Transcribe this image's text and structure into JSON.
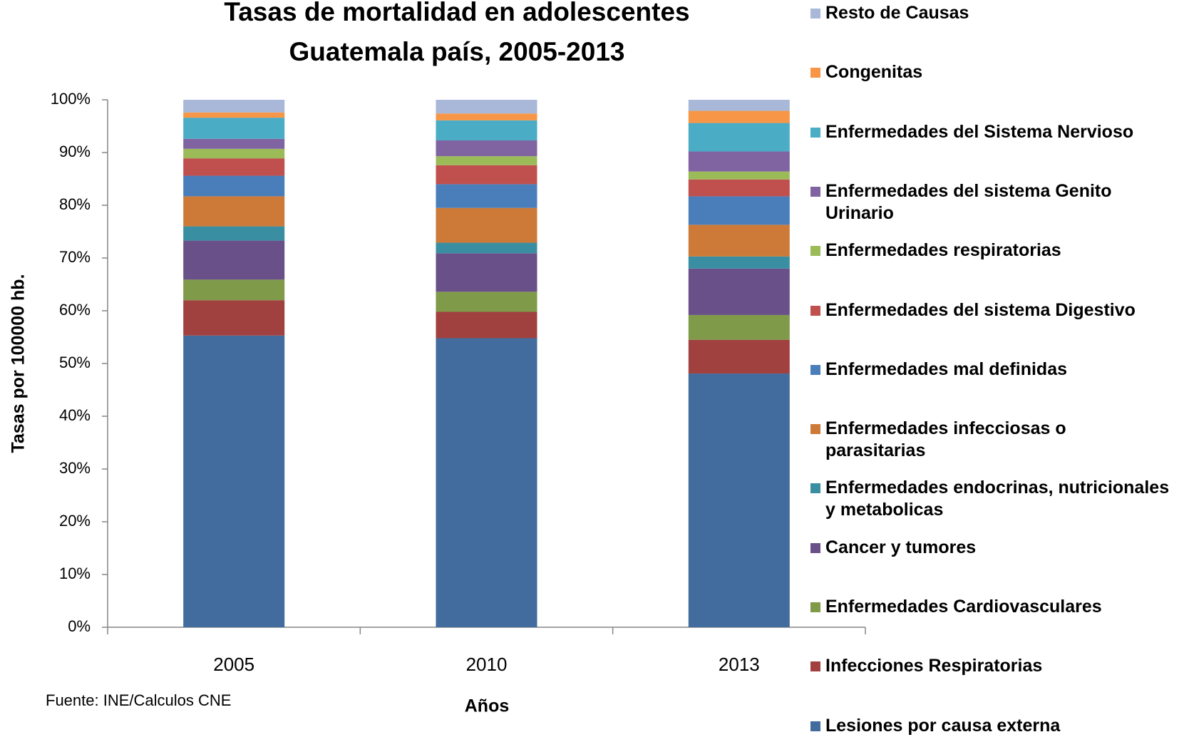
{
  "chart_data": {
    "type": "bar",
    "stacked": true,
    "title": [
      "Tasas de mortalidad en adolescentes",
      "Guatemala país,  2005-2013"
    ],
    "y_label": "Tasas por 100000 hb.",
    "x_label": "Años",
    "source": "Fuente: INE/Calculos CNE",
    "categories": [
      "2005",
      "2010",
      "2013"
    ],
    "ylim": [
      0,
      100
    ],
    "yticks": [
      {
        "value": 0,
        "label": "0%"
      },
      {
        "value": 10,
        "label": "10%"
      },
      {
        "value": 20,
        "label": "20%"
      },
      {
        "value": 30,
        "label": "30%"
      },
      {
        "value": 40,
        "label": "40%"
      },
      {
        "value": 50,
        "label": "50%"
      },
      {
        "value": 60,
        "label": "60%"
      },
      {
        "value": 70,
        "label": "70%"
      },
      {
        "value": 80,
        "label": "80%"
      },
      {
        "value": 90,
        "label": "90%"
      },
      {
        "value": 100,
        "label": "100%"
      }
    ],
    "grid": false,
    "legend": "right",
    "series": [
      {
        "name": "Lesiones por causa externa",
        "color": "#416c9d",
        "values": [
          55.3,
          54.8,
          48.1
        ]
      },
      {
        "name": "Infecciones Respiratorias",
        "color": "#a0403f",
        "values": [
          6.7,
          5.0,
          6.4
        ]
      },
      {
        "name": "Enfermedades Cardiovasculares",
        "color": "#7f9a48",
        "values": [
          3.9,
          3.8,
          4.7
        ]
      },
      {
        "name": "Cancer y tumores",
        "color": "#6a5088",
        "values": [
          7.4,
          7.3,
          8.8
        ]
      },
      {
        "name": "Enfermedades endocrinas, nutricionales y metabolicas",
        "color": "#3a8ea2",
        "values": [
          2.7,
          2.0,
          2.3
        ]
      },
      {
        "name": "Enfermedades infecciosas o parasitarias",
        "color": "#cd7a38",
        "values": [
          5.7,
          6.6,
          6.0
        ]
      },
      {
        "name": "Enfermedades mal definidas",
        "color": "#4a7ebb",
        "values": [
          3.9,
          4.5,
          5.4
        ]
      },
      {
        "name": "Enfermedades del sistema Digestivo",
        "color": "#c0504d",
        "values": [
          3.3,
          3.6,
          3.2
        ]
      },
      {
        "name": "Enfermedades respiratorias",
        "color": "#9bbb59",
        "values": [
          1.8,
          1.7,
          1.5
        ]
      },
      {
        "name": "Enfermedades del sistema Genito Urinario",
        "color": "#8064a2",
        "values": [
          1.9,
          3.0,
          3.8
        ]
      },
      {
        "name": "Enfermedades del Sistema Nervioso",
        "color": "#4bacc6",
        "values": [
          4.0,
          3.8,
          5.4
        ]
      },
      {
        "name": "Congenitas",
        "color": "#f79646",
        "values": [
          1.0,
          1.3,
          2.3
        ]
      },
      {
        "name": "Resto de Causas",
        "color": "#a9b8d8",
        "values": [
          2.4,
          2.6,
          2.1
        ]
      }
    ]
  }
}
